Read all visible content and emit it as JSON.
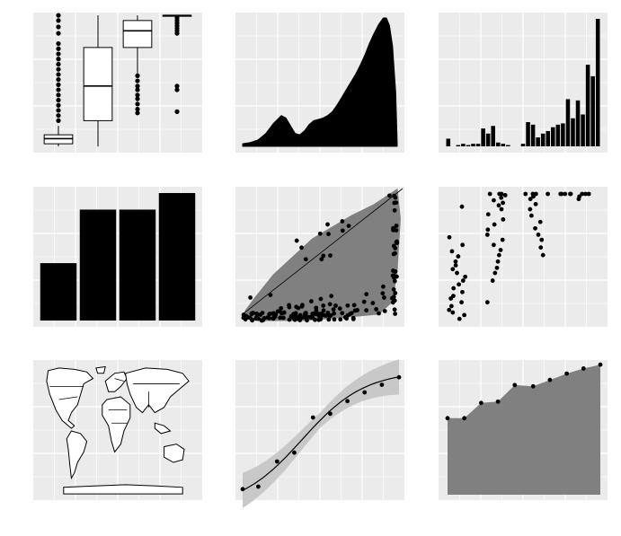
{
  "panel_background": "#EBEBEB",
  "grid_color": "#FFFFFF",
  "mark_color": "#000000",
  "band_color": "#C8C8C8",
  "area_fill": "#808080",
  "chart_data": [
    {
      "type": "boxplot",
      "title": "",
      "groups": [
        {
          "q1": 0.02,
          "median": 0.06,
          "q3": 0.09,
          "whisker_low": 0.0,
          "whisker_high": 0.16,
          "outliers": [
            0.2,
            0.24,
            0.28,
            0.32,
            0.36,
            0.4,
            0.44,
            0.48,
            0.52,
            0.56,
            0.6,
            0.64,
            0.68,
            0.72,
            0.76,
            0.8,
            0.88,
            0.93,
            0.98,
            1.02
          ]
        },
        {
          "q1": 0.2,
          "median": 0.47,
          "q3": 0.77,
          "whisker_low": 0.0,
          "whisker_high": 1.02,
          "outliers": []
        },
        {
          "q1": 0.77,
          "median": 0.9,
          "q3": 0.98,
          "whisker_low": 0.56,
          "whisker_high": 1.02,
          "outliers": [
            0.26,
            0.29,
            0.33,
            0.37,
            0.4,
            0.44,
            0.47,
            0.51,
            0.55
          ]
        },
        {
          "q1": 1.02,
          "median": 1.02,
          "q3": 1.02,
          "whisker_low": 1.02,
          "whisker_high": 1.02,
          "outliers": [
            0.27,
            0.44,
            0.47,
            0.88,
            0.9,
            0.92,
            0.94,
            0.96,
            0.98,
            1.0
          ]
        }
      ]
    },
    {
      "type": "area",
      "title": "",
      "x": [
        0,
        0.05,
        0.1,
        0.15,
        0.2,
        0.25,
        0.28,
        0.31,
        0.34,
        0.37,
        0.4,
        0.43,
        0.46,
        0.49,
        0.52,
        0.55,
        0.58,
        0.61,
        0.64,
        0.67,
        0.7,
        0.73,
        0.76,
        0.79,
        0.82,
        0.85,
        0.88,
        0.91,
        0.93,
        0.95,
        0.97,
        0.99,
        1.0
      ],
      "y": [
        0.02,
        0.03,
        0.05,
        0.1,
        0.18,
        0.24,
        0.22,
        0.16,
        0.1,
        0.09,
        0.12,
        0.17,
        0.2,
        0.21,
        0.22,
        0.24,
        0.27,
        0.32,
        0.38,
        0.44,
        0.5,
        0.56,
        0.63,
        0.71,
        0.8,
        0.88,
        0.95,
        1.0,
        1.0,
        0.94,
        0.78,
        0.42,
        0.02
      ]
    },
    {
      "type": "bar",
      "title": "",
      "values": [
        0.06,
        0,
        0.01,
        0.02,
        0.01,
        0.02,
        0.02,
        0.14,
        0.1,
        0.16,
        0.03,
        0.02,
        0.01,
        0,
        0,
        0.02,
        0.19,
        0.17,
        0.07,
        0.1,
        0.12,
        0.15,
        0.17,
        0.18,
        0.37,
        0.22,
        0.36,
        0.25,
        0.64,
        0.55,
        1.0
      ]
    },
    {
      "type": "bar",
      "title": "",
      "categories": [
        "",
        "",
        "",
        ""
      ],
      "values": [
        0.45,
        0.87,
        0.87,
        1.0
      ]
    },
    {
      "type": "scatter",
      "title": "",
      "hull": [
        [
          0,
          0.02
        ],
        [
          0.02,
          0.08
        ],
        [
          0.08,
          0.18
        ],
        [
          0.2,
          0.36
        ],
        [
          0.45,
          0.64
        ],
        [
          0.7,
          0.82
        ],
        [
          0.85,
          0.91
        ],
        [
          1.0,
          1.03
        ],
        [
          1.02,
          0.8
        ],
        [
          1.0,
          0.4
        ],
        [
          0.97,
          0.15
        ],
        [
          0.88,
          0.05
        ],
        [
          0.7,
          0.03
        ],
        [
          0.4,
          0.0
        ],
        [
          0.1,
          0.0
        ]
      ]
    },
    {
      "type": "scatter",
      "title": "",
      "columns": [
        {
          "x": 0.08,
          "points": [
            0.02,
            0.05,
            0.07,
            0.09,
            0.12,
            0.15,
            0.18,
            0.2,
            0.23,
            0.26,
            0.29,
            0.32,
            0.35,
            0.38,
            0.41,
            0.44,
            0.47,
            0.51,
            0.55,
            0.6,
            0.66,
            0.9
          ]
        },
        {
          "x": 0.33,
          "points": [
            0.15,
            0.32,
            0.38,
            0.42,
            0.47,
            0.52,
            0.56,
            0.6,
            0.64,
            0.68,
            0.72,
            0.76,
            0.8,
            0.84,
            0.88,
            0.91,
            0.93,
            0.95,
            0.97,
            0.99,
            1.0,
            1.0,
            1.0
          ]
        },
        {
          "x": 0.58,
          "points": [
            0.52,
            0.58,
            0.64,
            0.68,
            0.73,
            0.78,
            0.83,
            0.88,
            0.92,
            0.96,
            0.98,
            1.0,
            1.0,
            1.0,
            1.0
          ]
        },
        {
          "x": 0.83,
          "points": [
            0.96,
            0.98,
            1.0,
            1.0,
            1.0,
            1.0,
            1.0,
            1.0,
            1.0,
            1.0
          ]
        }
      ]
    },
    {
      "type": "map",
      "title": ""
    },
    {
      "type": "line",
      "title": "",
      "x": [
        0,
        0.1,
        0.22,
        0.33,
        0.45,
        0.56,
        0.67,
        0.78,
        0.89,
        1.0
      ],
      "y": [
        0.03,
        0.05,
        0.25,
        0.32,
        0.6,
        0.63,
        0.73,
        0.8,
        0.86,
        0.92
      ],
      "smooth": true,
      "confidence_band": true
    },
    {
      "type": "area",
      "title": "",
      "x": [
        0,
        0.11,
        0.22,
        0.33,
        0.44,
        0.56,
        0.67,
        0.78,
        0.89,
        1.0
      ],
      "y": [
        0.6,
        0.6,
        0.72,
        0.73,
        0.86,
        0.85,
        0.9,
        0.95,
        0.99,
        1.02
      ],
      "points": true
    }
  ]
}
